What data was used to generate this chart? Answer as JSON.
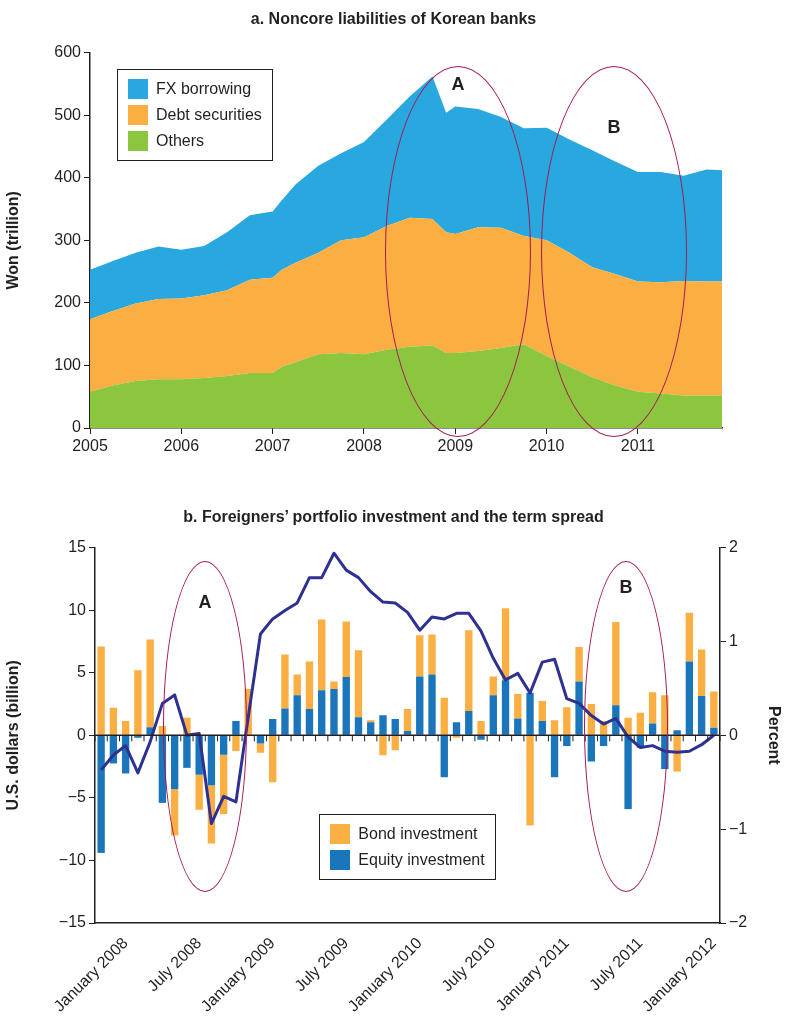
{
  "chart_data": [
    {
      "type": "area",
      "title": "a. Noncore liabilities of Korean banks",
      "ylabel": "Won (trillion)",
      "stacked": true,
      "legend": "top left",
      "x": [
        2005,
        2005.25,
        2005.5,
        2005.75,
        2006,
        2006.25,
        2006.5,
        2006.75,
        2007,
        2007.1,
        2007.25,
        2007.5,
        2007.75,
        2008,
        2008.25,
        2008.5,
        2008.75,
        2008.9,
        2009,
        2009.25,
        2009.5,
        2009.75,
        2010,
        2010.25,
        2010.5,
        2010.75,
        2011,
        2011.25,
        2011.5,
        2011.75,
        2011.92
      ],
      "series": [
        {
          "name": "Others",
          "color": "#8cc63f",
          "values": [
            58,
            68,
            75,
            78,
            78,
            80,
            83,
            88,
            88,
            98,
            105,
            118,
            120,
            118,
            125,
            130,
            132,
            120,
            120,
            123,
            128,
            134,
            115,
            98,
            81,
            68,
            58,
            55,
            52,
            52,
            52
          ]
        },
        {
          "name": "Debt securities",
          "color": "#fbae42",
          "values": [
            116,
            119,
            124,
            128,
            129,
            132,
            137,
            149,
            152,
            155,
            159,
            162,
            180,
            187,
            198,
            206,
            202,
            193,
            190,
            198,
            192,
            173,
            185,
            182,
            176,
            178,
            176,
            178,
            183,
            182,
            182
          ]
        },
        {
          "name": "FX borrowing",
          "color": "#29a8e0",
          "values": [
            79,
            80,
            81,
            84,
            78,
            79,
            93,
            103,
            106,
            111,
            125,
            139,
            139,
            152,
            170,
            194,
            228,
            191,
            204,
            189,
            177,
            172,
            180,
            181,
            187,
            180,
            175,
            176,
            168,
            179,
            178
          ]
        }
      ],
      "xlim": [
        2005,
        2011.92
      ],
      "xticks": [
        2005,
        2006,
        2007,
        2008,
        2009,
        2010,
        2011
      ],
      "ylim": [
        0,
        600
      ],
      "yticks": [
        0,
        100,
        200,
        300,
        400,
        500,
        600
      ],
      "annotations": [
        "A",
        "B"
      ]
    },
    {
      "type": "bar",
      "title": "b. Foreigners’ portfolio investment and the term spread",
      "ylabel": "U.S. dollars (billion)",
      "y2label": "Percent",
      "stacked": true,
      "legend": "bottom",
      "categories": [
        null,
        null,
        "January 2008",
        null,
        null,
        null,
        null,
        null,
        "July 2008",
        null,
        null,
        null,
        null,
        null,
        "January 2009",
        null,
        null,
        null,
        null,
        null,
        "July 2009",
        null,
        null,
        null,
        null,
        null,
        "January 2010",
        null,
        null,
        null,
        null,
        null,
        "July 2010",
        null,
        null,
        null,
        null,
        null,
        "January 2011",
        null,
        null,
        null,
        null,
        null,
        "July 2011",
        null,
        null,
        null,
        null,
        null,
        "January 2012"
      ],
      "series": [
        {
          "name": "Equity investment",
          "color": "#1a75bb",
          "values": [
            -9.4,
            -2.25,
            -3.05,
            -0.2,
            0.65,
            -5.4,
            -4.3,
            -2.6,
            -3.15,
            -4.0,
            -1.55,
            1.15,
            0,
            -0.65,
            1.3,
            2.15,
            3.2,
            2.1,
            3.6,
            3.7,
            4.65,
            1.45,
            1.05,
            1.6,
            1.3,
            0.35,
            4.7,
            4.85,
            -3.35,
            1.05,
            1.95,
            -0.35,
            3.2,
            4.4,
            1.35,
            3.4,
            1.15,
            -3.35,
            -0.85,
            4.3,
            -2.1,
            -0.85,
            2.4,
            -5.9,
            -1.0,
            0.95,
            -2.7,
            0.4,
            5.9,
            3.15,
            0.6
          ]
        },
        {
          "name": "Bond investment",
          "color": "#fbae42",
          "values": [
            7.1,
            2.2,
            1.15,
            5.2,
            7.0,
            0.75,
            -3.7,
            1.4,
            -2.8,
            -4.65,
            -4.75,
            -1.25,
            3.7,
            -0.75,
            -3.75,
            4.3,
            1.65,
            3.8,
            5.65,
            0.6,
            4.45,
            5.35,
            0.15,
            -1.6,
            -1.2,
            1.75,
            3.3,
            3.2,
            3.0,
            -0.2,
            6.45,
            1.15,
            1.5,
            5.75,
            1.95,
            -7.2,
            1.6,
            1.2,
            2.25,
            2.75,
            2.5,
            1.15,
            6.65,
            1.4,
            1.8,
            2.5,
            3.2,
            -2.9,
            3.9,
            3.7,
            2.9
          ]
        },
        {
          "type": "line",
          "axis": "y2",
          "color": "#2e3192",
          "values": [
            -0.37,
            -0.21,
            -0.11,
            -0.4,
            -0.07,
            0.34,
            0.43,
            0,
            0.02,
            -0.94,
            -0.65,
            -0.71,
            0.19,
            1.08,
            1.24,
            1.33,
            1.41,
            1.68,
            1.68,
            1.94,
            1.76,
            1.68,
            1.53,
            1.42,
            1.41,
            1.31,
            1.12,
            1.26,
            1.24,
            1.3,
            1.3,
            1.11,
            0.82,
            0.59,
            0.66,
            0.45,
            0.78,
            0.81,
            0.39,
            0.34,
            0.21,
            0.12,
            0.18,
            -0.02,
            -0.13,
            -0.11,
            -0.17,
            -0.18,
            -0.17,
            -0.1,
            0
          ]
        }
      ],
      "ylim": [
        -15,
        15
      ],
      "yticks": [
        {
          "value": -15,
          "label": "−15"
        },
        {
          "value": -10,
          "label": "−10"
        },
        {
          "value": -5,
          "label": "−5"
        },
        0,
        5,
        10,
        15
      ],
      "y2lim": [
        -2,
        2
      ],
      "y2ticks": [
        {
          "value": -2,
          "label": "−2"
        },
        {
          "value": -1,
          "label": "−1"
        },
        0,
        1,
        2
      ],
      "annotations": [
        "A",
        "B"
      ]
    }
  ]
}
